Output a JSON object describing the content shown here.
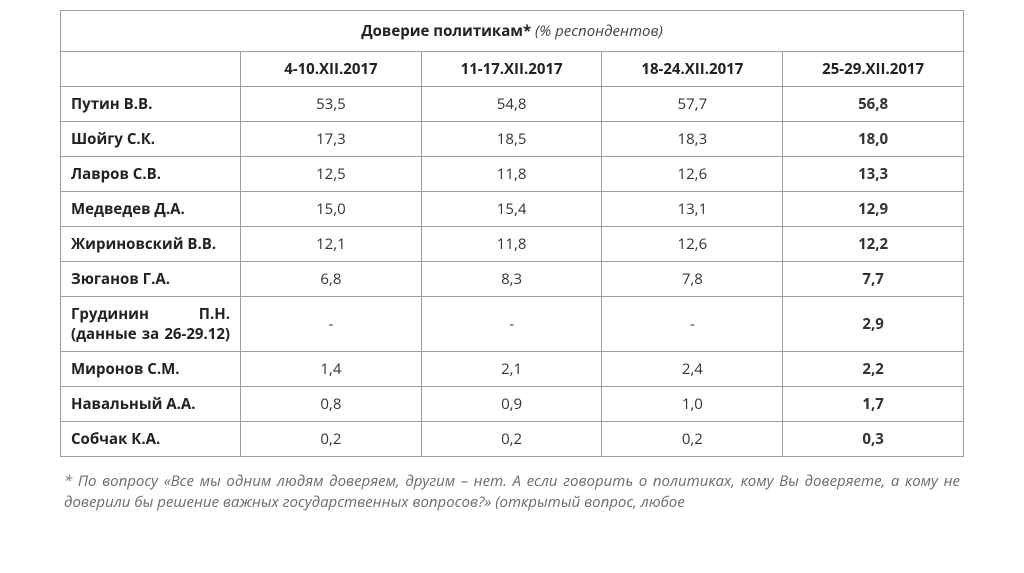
{
  "table": {
    "title_bold": "Доверие политикам*",
    "title_ital": "(% респондентов)",
    "columns": [
      "4-10.XII.2017",
      "11-17.XII.2017",
      "18-24.XII.2017",
      "25-29.XII.2017"
    ],
    "rows": [
      {
        "name": "Путин В.В.",
        "vals": [
          "53,5",
          "54,8",
          "57,7",
          "56,8"
        ]
      },
      {
        "name": "Шойгу С.К.",
        "vals": [
          "17,3",
          "18,5",
          "18,3",
          "18,0"
        ]
      },
      {
        "name": "Лавров С.В.",
        "vals": [
          "12,5",
          "11,8",
          "12,6",
          "13,3"
        ]
      },
      {
        "name": "Медведев Д.А.",
        "vals": [
          "15,0",
          "15,4",
          "13,1",
          "12,9"
        ]
      },
      {
        "name": "Жириновский В.В.",
        "vals": [
          "12,1",
          "11,8",
          "12,6",
          "12,2"
        ]
      },
      {
        "name": "Зюганов Г.А.",
        "vals": [
          "6,8",
          "8,3",
          "7,8",
          "7,7"
        ]
      },
      {
        "name": "Грудинин П.Н. (данные за 26-29.12)",
        "justify": true,
        "vals": [
          "-",
          "-",
          "-",
          "2,9"
        ]
      },
      {
        "name": "Миронов С.М.",
        "vals": [
          "1,4",
          "2,1",
          "2,4",
          "2,2"
        ]
      },
      {
        "name": "Навальный А.А.",
        "vals": [
          "0,8",
          "0,9",
          "1,0",
          "1,7"
        ]
      },
      {
        "name": "Собчак К.А.",
        "vals": [
          "0,2",
          "0,2",
          "0,2",
          "0,3"
        ]
      }
    ],
    "bold_last_column": true
  },
  "footnote": "* По вопросу «Все мы одним людям доверяем, другим – нет. А если говорить о политиках, кому Вы доверяете, а кому не доверили бы решение важных государственных вопросов?» (открытый вопрос, любое"
}
